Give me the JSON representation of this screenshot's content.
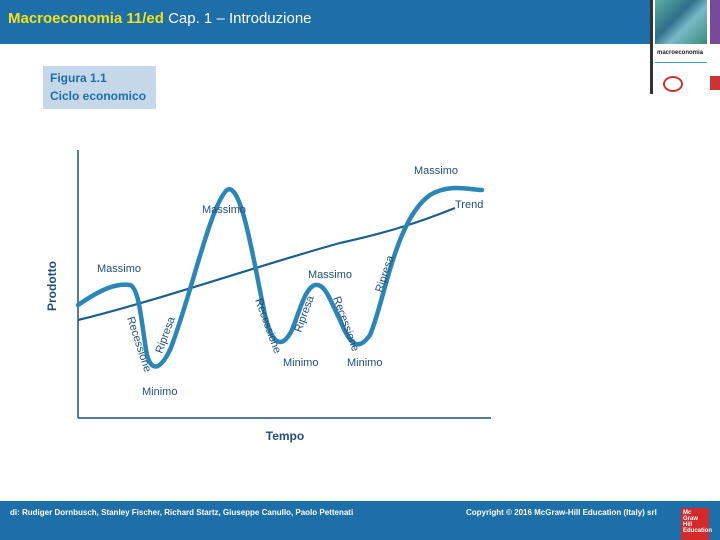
{
  "header": {
    "title_emphasis": "Macroeconomia 11/ed",
    "title_rest": "Cap. 1 – Introduzione"
  },
  "cover": {
    "text": "macroeconomia"
  },
  "figure": {
    "number": "Figura 1.1",
    "caption": "Ciclo economico"
  },
  "diagram": {
    "ylabel": "Prodotto",
    "xlabel": "Tempo",
    "labels": {
      "massimo_1": "Massimo",
      "recessione_1": "Recessione",
      "ripresa_1": "Ripresa",
      "minimo_1": "Minimo",
      "massimo_2": "Massimo",
      "recessione_2": "Recessione",
      "ripresa_2": "Ripresa",
      "minimo_2": "Minimo",
      "massimo_3": "Massimo",
      "recessione_3": "Recessione",
      "minimo_3": "Minimo",
      "ripresa_3": "Ripresa",
      "massimo_4": "Massimo",
      "trend": "Trend"
    },
    "colors": {
      "cycle": "#2a86b8",
      "trend": "#1c5f8c",
      "axis": "#1f4f7a",
      "text": "#1f4f7a"
    }
  },
  "footer": {
    "authors": "di: Rudiger Dornbusch, Stanley Fischer, Richard Startz, Giuseppe Canullo, Paolo Pettenati",
    "copyright": "Copyright © 2016 McGraw-Hill Education (Italy) srl",
    "logo": "Mc Graw Hill Education"
  }
}
